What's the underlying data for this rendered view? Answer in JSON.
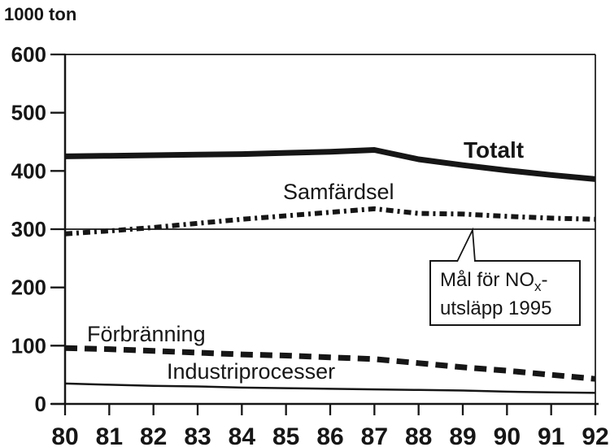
{
  "chart_data": {
    "type": "line",
    "unit_label": "1000 ton",
    "x": [
      80,
      81,
      82,
      83,
      84,
      85,
      86,
      87,
      88,
      89,
      90,
      91,
      92
    ],
    "x_tick_labels": [
      "80",
      "81",
      "82",
      "83",
      "84",
      "85",
      "86",
      "87",
      "88",
      "89",
      "90",
      "91",
      "92"
    ],
    "y_ticks": [
      0,
      100,
      200,
      300,
      400,
      500,
      600
    ],
    "ylim": [
      0,
      600
    ],
    "grid": false,
    "legend_position": "inline-labels",
    "series": [
      {
        "name": "Totalt",
        "key": "totalt",
        "style": "thick-solid",
        "values": [
          425,
          426,
          427,
          428,
          429,
          431,
          433,
          436,
          420,
          410,
          401,
          393,
          386
        ]
      },
      {
        "name": "Samfärdsel",
        "key": "samfardsel",
        "style": "dash-dot",
        "values": [
          292,
          297,
          303,
          310,
          317,
          323,
          329,
          335,
          327,
          326,
          322,
          319,
          317
        ]
      },
      {
        "name": "Förbränning",
        "key": "forbranning",
        "style": "thick-dashed",
        "values": [
          96,
          94,
          91,
          88,
          85,
          83,
          80,
          77,
          70,
          63,
          57,
          50,
          43
        ]
      },
      {
        "name": "Industriprocesser",
        "key": "industriprocesser",
        "style": "thin-solid",
        "values": [
          35,
          33,
          31,
          30,
          28,
          27,
          26,
          25,
          24,
          23,
          21,
          20,
          19
        ]
      }
    ],
    "target_line": {
      "value": 300,
      "style": "thin-solid",
      "label_line1_pre": "Mål för NO",
      "label_sub": "x",
      "label_line1_post": "-",
      "label_line2": "utsläpp 1995"
    }
  },
  "colors": {
    "ink": "#161616",
    "background": "#ffffff"
  }
}
